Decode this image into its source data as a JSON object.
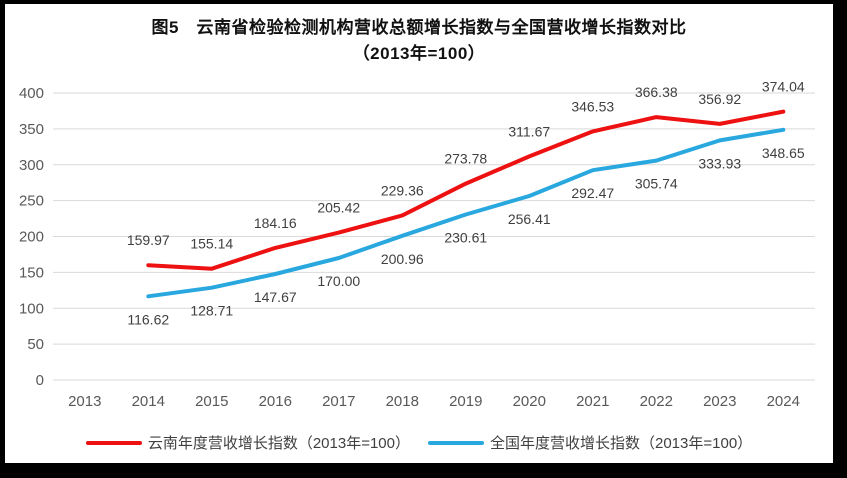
{
  "title": {
    "line1": "图5　云南省检验检测机构营收总额增长指数与全国营收增长指数对比",
    "line2": "（2013年=100）"
  },
  "chart_data": {
    "type": "line",
    "title": "图5　云南省检验检测机构营收总额增长指数与全国营收增长指数对比",
    "subtitle": "（2013年=100）",
    "x_categories": [
      "2013",
      "2014",
      "2015",
      "2016",
      "2017",
      "2018",
      "2019",
      "2020",
      "2021",
      "2022",
      "2023",
      "2024"
    ],
    "xlabel": "",
    "ylabel": "",
    "ylim": [
      0,
      400
    ],
    "y_ticks": [
      0,
      50,
      100,
      150,
      200,
      250,
      300,
      350,
      400
    ],
    "grid": "horizontal",
    "legend_position": "bottom",
    "data_labels": true,
    "series": [
      {
        "name": "云南年度营收增长指数（2013年=100）",
        "color": "#ed1111",
        "start_category": "2014",
        "values": [
          159.97,
          155.14,
          184.16,
          205.42,
          229.36,
          273.78,
          311.67,
          346.53,
          366.38,
          356.92,
          374.04
        ],
        "labels": [
          "159.97",
          "155.14",
          "184.16",
          "205.42",
          "229.36",
          "273.78",
          "311.67",
          "346.53",
          "366.38",
          "356.92",
          "374.04"
        ],
        "label_side": "above"
      },
      {
        "name": "全国年度营收增长指数（2013年=100）",
        "color": "#29a8df",
        "start_category": "2014",
        "values": [
          116.62,
          128.71,
          147.67,
          170.0,
          200.96,
          230.61,
          256.41,
          292.47,
          305.74,
          333.93,
          348.65
        ],
        "labels": [
          "116.62",
          "128.71",
          "147.67",
          "170.00",
          "200.96",
          "230.61",
          "256.41",
          "292.47",
          "305.74",
          "333.93",
          "348.65"
        ],
        "label_side": "below"
      }
    ]
  }
}
